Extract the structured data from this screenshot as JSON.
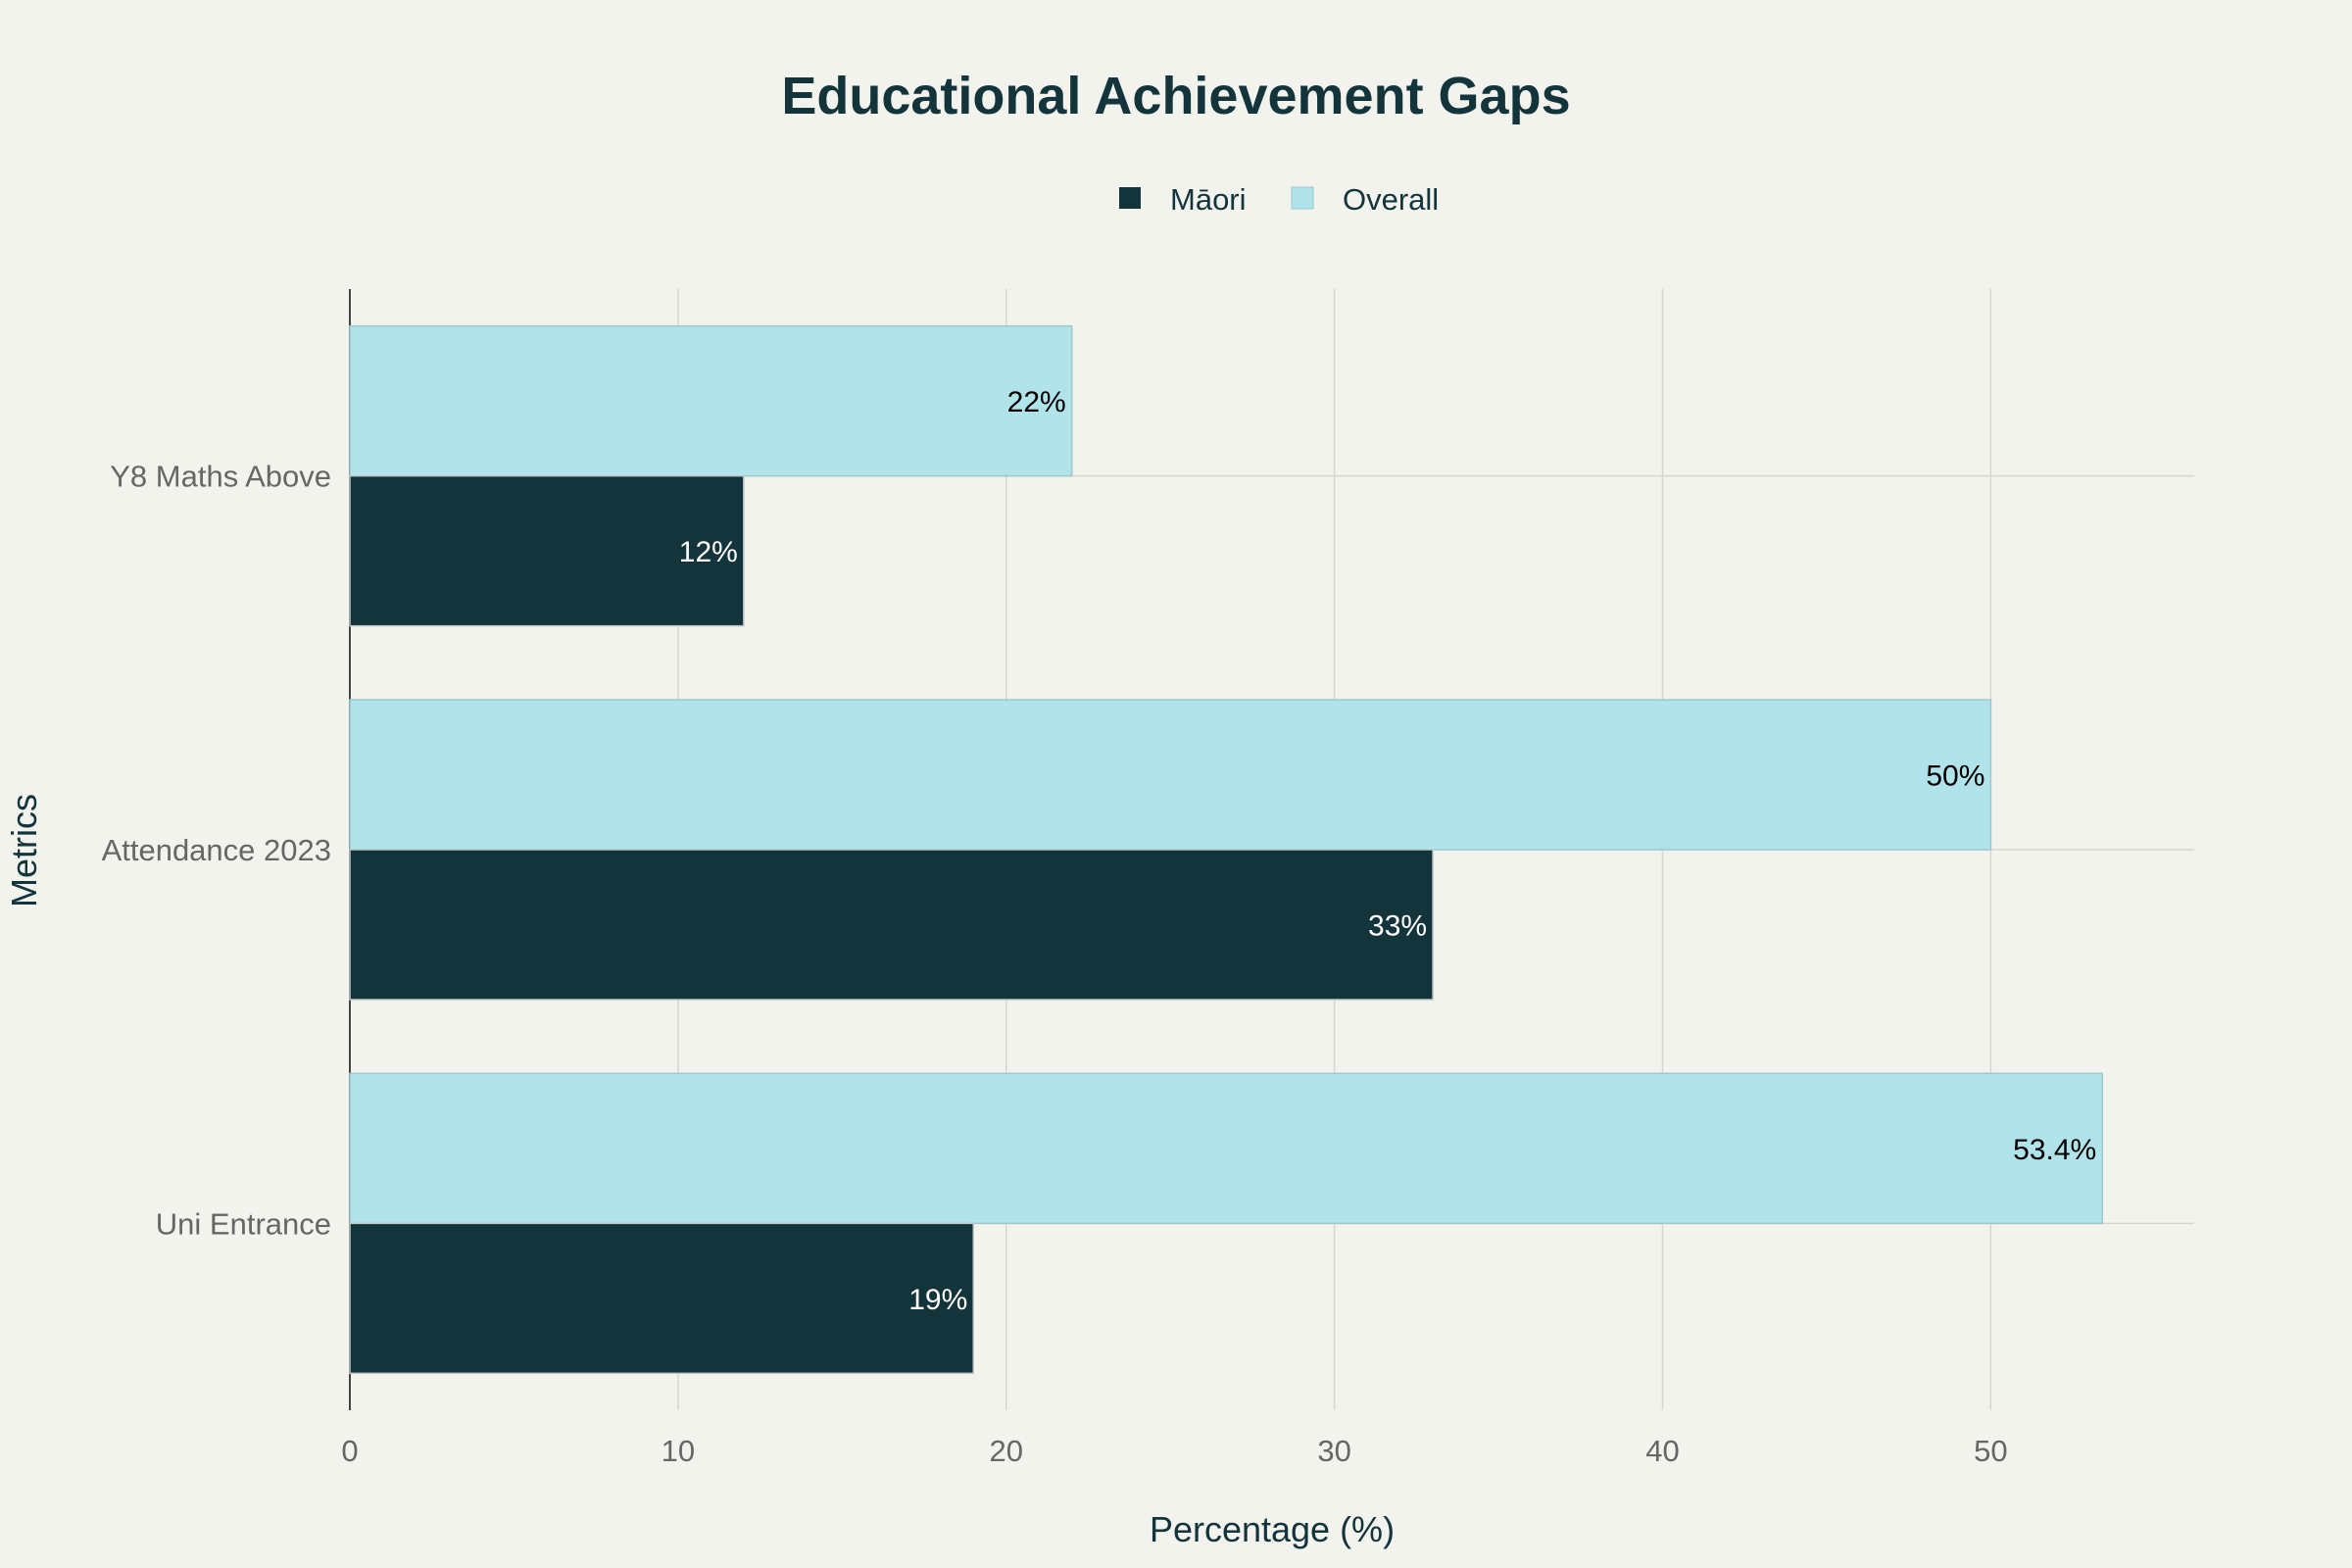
{
  "chart_data": {
    "type": "bar",
    "orientation": "horizontal",
    "title": "Educational Achievement Gaps",
    "xlabel": "Percentage (%)",
    "ylabel": "Metrics",
    "xlim": [
      0,
      56.2
    ],
    "xticks": [
      0,
      10,
      20,
      30,
      40,
      50
    ],
    "grid": true,
    "legend_position": "top-center",
    "categories": [
      "Y8 Maths Above",
      "Attendance 2023",
      "Uni Entrance"
    ],
    "series": [
      {
        "name": "Māori",
        "color": "#13343b",
        "values": [
          12,
          33,
          19
        ],
        "labels": [
          "12%",
          "33%",
          "19%"
        ]
      },
      {
        "name": "Overall",
        "color": "#b1e4ea",
        "values": [
          22,
          50,
          53.4
        ],
        "labels": [
          "22%",
          "50%",
          "53.4%"
        ]
      }
    ]
  }
}
